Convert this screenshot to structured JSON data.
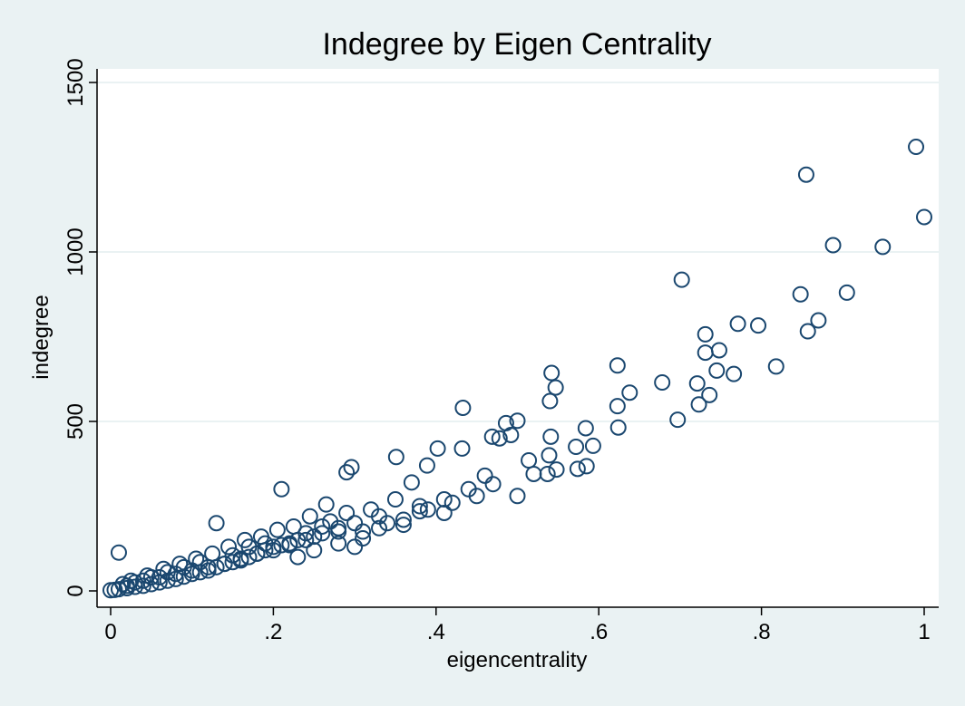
{
  "chart_data": {
    "type": "scatter",
    "title": "Indegree by Eigen Centrality",
    "xlabel": "eigencentrality",
    "ylabel": "indegree",
    "xlim": [
      0,
      1
    ],
    "ylim": [
      0,
      1500
    ],
    "x_ticks": [
      0,
      0.2,
      0.4,
      0.6,
      0.8,
      1
    ],
    "x_tick_labels": [
      "0",
      ".2",
      ".4",
      ".6",
      ".8",
      "1"
    ],
    "y_ticks": [
      0,
      500,
      1000,
      1500
    ],
    "y_tick_labels": [
      "0",
      "500",
      "1000",
      "1500"
    ],
    "grid": "horizontal",
    "legend": "none",
    "marker": "hollow-circle",
    "colors": {
      "background": "#eaf2f3",
      "plot_background": "#ffffff",
      "title": "#1e3a5f",
      "marker": "#1a476f",
      "grid": "#eaf2f3"
    },
    "series": [
      {
        "x": [
          0.99,
          0.855,
          1.0,
          0.888,
          0.949,
          0.702,
          0.905,
          0.848,
          0.87,
          0.771,
          0.796,
          0.857,
          0.731,
          0.748,
          0.731,
          0.818,
          0.623,
          0.678,
          0.745,
          0.766,
          0.721,
          0.736,
          0.723,
          0.697,
          0.542,
          0.547,
          0.638,
          0.623,
          0.624,
          0.54,
          0.433,
          0.486,
          0.469,
          0.478,
          0.492,
          0.539,
          0.584,
          0.593,
          0.572,
          0.541,
          0.514,
          0.585,
          0.537,
          0.548,
          0.574,
          0.5,
          0.432,
          0.351,
          0.402,
          0.389,
          0.29,
          0.296,
          0.21,
          0.13,
          0.01,
          0.46,
          0.47,
          0.45,
          0.42,
          0.41,
          0.38,
          0.36,
          0.34,
          0.33,
          0.31,
          0.3,
          0.28,
          0.27,
          0.26,
          0.25,
          0.24,
          0.23,
          0.22,
          0.21,
          0.2,
          0.19,
          0.18,
          0.17,
          0.16,
          0.15,
          0.14,
          0.13,
          0.12,
          0.11,
          0.1,
          0.09,
          0.08,
          0.07,
          0.06,
          0.05,
          0.04,
          0.03,
          0.02,
          0.01,
          0.005,
          0.0,
          0.5,
          0.52,
          0.44,
          0.37,
          0.35,
          0.32,
          0.29,
          0.265,
          0.245,
          0.225,
          0.205,
          0.185,
          0.165,
          0.145,
          0.125,
          0.105,
          0.085,
          0.065,
          0.045,
          0.025,
          0.015,
          0.41,
          0.39,
          0.38,
          0.36,
          0.33,
          0.31,
          0.28,
          0.26,
          0.24,
          0.22,
          0.2,
          0.18,
          0.16,
          0.14,
          0.12,
          0.1,
          0.08,
          0.06,
          0.04,
          0.02,
          0.3,
          0.28,
          0.25,
          0.23,
          0.19,
          0.17,
          0.15,
          0.11,
          0.09,
          0.07,
          0.05,
          0.03
        ],
        "y": [
          1310,
          1228,
          1103,
          1020,
          1015,
          918,
          880,
          875,
          798,
          788,
          783,
          766,
          757,
          710,
          703,
          662,
          665,
          615,
          650,
          640,
          612,
          578,
          550,
          505,
          643,
          600,
          585,
          545,
          482,
          560,
          540,
          495,
          455,
          450,
          460,
          400,
          480,
          428,
          425,
          455,
          385,
          368,
          345,
          358,
          360,
          502,
          420,
          395,
          420,
          370,
          350,
          365,
          300,
          200,
          113,
          340,
          315,
          280,
          260,
          230,
          250,
          210,
          200,
          220,
          175,
          200,
          175,
          205,
          190,
          160,
          170,
          150,
          140,
          135,
          130,
          120,
          110,
          100,
          90,
          85,
          80,
          70,
          60,
          55,
          50,
          42,
          35,
          30,
          25,
          20,
          15,
          12,
          8,
          5,
          3,
          2,
          280,
          345,
          300,
          320,
          270,
          240,
          230,
          255,
          220,
          190,
          180,
          160,
          150,
          130,
          110,
          95,
          80,
          65,
          45,
          30,
          20,
          270,
          240,
          235,
          195,
          185,
          155,
          185,
          170,
          150,
          135,
          120,
          110,
          95,
          80,
          70,
          60,
          50,
          40,
          30,
          15,
          130,
          140,
          120,
          100,
          140,
          130,
          105,
          85,
          70,
          55,
          40,
          25
        ]
      }
    ]
  }
}
